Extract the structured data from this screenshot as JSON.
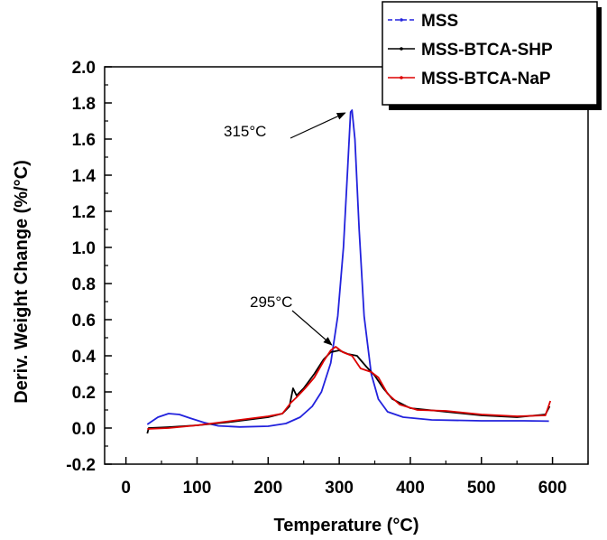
{
  "chart_data": {
    "type": "line",
    "title": "",
    "xlabel": "Temperature (°C)",
    "ylabel": "Deriv. Weight Change (%/°C)",
    "xlim": [
      -30,
      650
    ],
    "ylim": [
      -0.2,
      2.0
    ],
    "x_ticks": [
      0,
      100,
      200,
      300,
      400,
      500,
      600
    ],
    "y_ticks": [
      -0.2,
      0.0,
      0.2,
      0.4,
      0.6,
      0.8,
      1.0,
      1.2,
      1.4,
      1.6,
      1.8,
      2.0
    ],
    "x_tick_labels": [
      "0",
      "100",
      "200",
      "300",
      "400",
      "500",
      "600"
    ],
    "y_tick_labels": [
      "-0.2",
      "0.0",
      "0.2",
      "0.4",
      "0.6",
      "0.8",
      "1.0",
      "1.2",
      "1.4",
      "1.6",
      "1.8",
      "2.0"
    ],
    "grid": false,
    "legend_position": "top-right",
    "series": [
      {
        "name": "MSS",
        "color": "#2222dd",
        "points": [
          [
            30,
            0.02
          ],
          [
            45,
            0.06
          ],
          [
            60,
            0.08
          ],
          [
            75,
            0.075
          ],
          [
            90,
            0.055
          ],
          [
            110,
            0.03
          ],
          [
            130,
            0.012
          ],
          [
            160,
            0.006
          ],
          [
            200,
            0.01
          ],
          [
            225,
            0.025
          ],
          [
            245,
            0.06
          ],
          [
            262,
            0.12
          ],
          [
            275,
            0.2
          ],
          [
            288,
            0.36
          ],
          [
            298,
            0.62
          ],
          [
            306,
            1.0
          ],
          [
            312,
            1.45
          ],
          [
            316,
            1.75
          ],
          [
            318,
            1.76
          ],
          [
            322,
            1.6
          ],
          [
            328,
            1.1
          ],
          [
            335,
            0.62
          ],
          [
            345,
            0.3
          ],
          [
            355,
            0.16
          ],
          [
            368,
            0.09
          ],
          [
            390,
            0.06
          ],
          [
            430,
            0.045
          ],
          [
            500,
            0.04
          ],
          [
            560,
            0.04
          ],
          [
            595,
            0.038
          ]
        ]
      },
      {
        "name": "MSS-BTCA-SHP",
        "color": "#000000",
        "points": [
          [
            30,
            -0.03
          ],
          [
            32,
            0.0
          ],
          [
            60,
            0.005
          ],
          [
            100,
            0.015
          ],
          [
            150,
            0.035
          ],
          [
            200,
            0.06
          ],
          [
            220,
            0.08
          ],
          [
            230,
            0.12
          ],
          [
            235,
            0.22
          ],
          [
            240,
            0.18
          ],
          [
            250,
            0.22
          ],
          [
            265,
            0.3
          ],
          [
            278,
            0.38
          ],
          [
            288,
            0.42
          ],
          [
            300,
            0.43
          ],
          [
            312,
            0.41
          ],
          [
            325,
            0.4
          ],
          [
            338,
            0.34
          ],
          [
            350,
            0.29
          ],
          [
            362,
            0.22
          ],
          [
            375,
            0.16
          ],
          [
            400,
            0.11
          ],
          [
            450,
            0.09
          ],
          [
            500,
            0.07
          ],
          [
            550,
            0.06
          ],
          [
            590,
            0.075
          ],
          [
            596,
            0.12
          ]
        ]
      },
      {
        "name": "MSS-BTCA-NaP",
        "color": "#dd0000",
        "points": [
          [
            30,
            -0.005
          ],
          [
            60,
            0.0
          ],
          [
            100,
            0.015
          ],
          [
            150,
            0.04
          ],
          [
            200,
            0.065
          ],
          [
            220,
            0.08
          ],
          [
            232,
            0.14
          ],
          [
            240,
            0.17
          ],
          [
            252,
            0.22
          ],
          [
            265,
            0.28
          ],
          [
            278,
            0.37
          ],
          [
            288,
            0.43
          ],
          [
            295,
            0.45
          ],
          [
            305,
            0.42
          ],
          [
            318,
            0.4
          ],
          [
            330,
            0.33
          ],
          [
            345,
            0.31
          ],
          [
            355,
            0.28
          ],
          [
            368,
            0.19
          ],
          [
            385,
            0.13
          ],
          [
            410,
            0.1
          ],
          [
            450,
            0.095
          ],
          [
            500,
            0.075
          ],
          [
            550,
            0.065
          ],
          [
            590,
            0.07
          ],
          [
            597,
            0.15
          ]
        ]
      }
    ],
    "annotations": [
      {
        "text": "315°C",
        "target": [
          316,
          1.76
        ]
      },
      {
        "text": "295°C",
        "target": [
          292,
          0.44
        ]
      }
    ]
  }
}
